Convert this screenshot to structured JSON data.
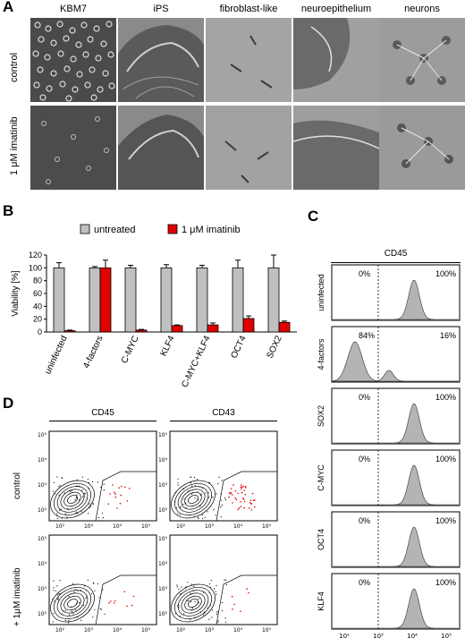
{
  "panel_a": {
    "letter": "A",
    "columns": [
      "KBM7",
      "iPS",
      "fibroblast-like",
      "neuroepithelium",
      "neurons"
    ],
    "rows": [
      "control",
      "1 μM imatinib"
    ]
  },
  "panel_b": {
    "letter": "B",
    "chart_data": {
      "type": "bar",
      "categories": [
        "uninfected",
        "4-factors",
        "C-MYC",
        "KLF4",
        "C-MYC+KLF4",
        "OCT4",
        "SOX2"
      ],
      "series": [
        {
          "name": "untreated",
          "values": [
            100,
            100,
            100,
            100,
            100,
            100,
            100
          ],
          "errors": [
            8,
            2,
            4,
            5,
            4,
            12,
            20
          ],
          "color": "#c0c0c0"
        },
        {
          "name": "1 μM imatinib",
          "values": [
            2,
            100,
            3,
            10,
            11,
            21,
            15
          ],
          "errors": [
            1,
            12,
            1,
            1,
            3,
            4,
            2
          ],
          "color": "#e00000"
        }
      ],
      "ylabel": "Viability [%]",
      "ylim": [
        0,
        120
      ],
      "yticks": [
        "0",
        "20",
        "40",
        "60",
        "80",
        "100",
        "120"
      ],
      "legend": "top"
    }
  },
  "panel_c": {
    "letter": "C",
    "header": "CD45",
    "histograms": [
      {
        "label": "uninfected",
        "left_pct": "0%",
        "right_pct": "100%"
      },
      {
        "label": "4-factors",
        "left_pct": "84%",
        "right_pct": "16%"
      },
      {
        "label": "SOX2",
        "left_pct": "0%",
        "right_pct": "100%"
      },
      {
        "label": "C-MYC",
        "left_pct": "0%",
        "right_pct": "100%"
      },
      {
        "label": "OCT4",
        "left_pct": "0%",
        "right_pct": "100%"
      },
      {
        "label": "KLF4",
        "left_pct": "0%",
        "right_pct": "100%"
      }
    ],
    "x_ticks": [
      "10²",
      "10³",
      "10⁴",
      "10⁵"
    ]
  },
  "panel_d": {
    "letter": "D",
    "columns": [
      "CD45",
      "CD43"
    ],
    "rows": [
      "control",
      "+ 1μM imatinib"
    ],
    "ticks": [
      "10²",
      "10³",
      "10⁴",
      "10⁵"
    ]
  },
  "colors": {
    "red": "#e00000",
    "gray": "#c0c0c0",
    "hist_fill": "#b4b4b4"
  }
}
